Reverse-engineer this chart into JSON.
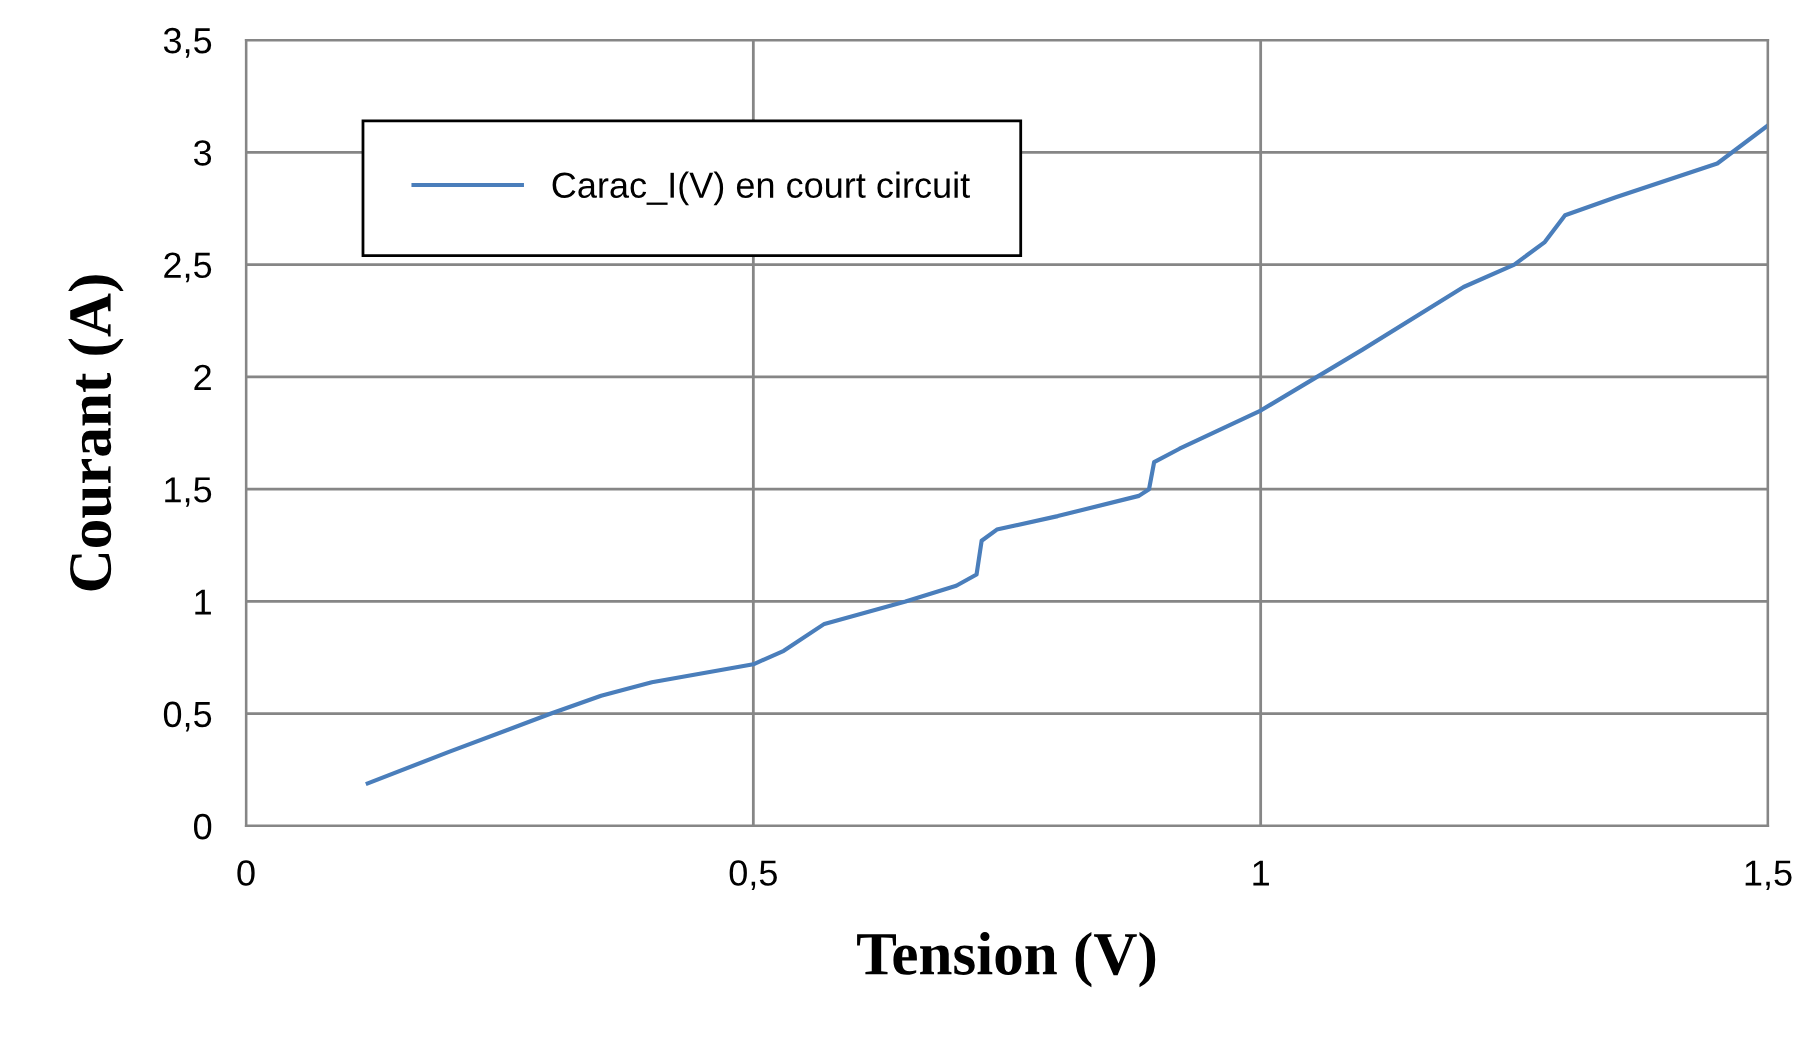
{
  "chart_data": {
    "type": "line",
    "xlabel": "Tension (V)",
    "ylabel": "Courant (A)",
    "xlim": [
      0,
      1.5
    ],
    "ylim": [
      0,
      3.5
    ],
    "xticks": [
      0,
      {
        "value": 0.5,
        "label": "0,5"
      },
      1,
      {
        "value": 1.5,
        "label": "1,5"
      }
    ],
    "yticks": [
      0,
      {
        "value": 0.5,
        "label": "0,5"
      },
      1,
      {
        "value": 1.5,
        "label": "1,5"
      },
      2,
      {
        "value": 2.5,
        "label": "2,5"
      },
      3,
      {
        "value": 3.5,
        "label": "3,5"
      }
    ],
    "grid": true,
    "legend": "top left",
    "marker": "none",
    "line_style": "solid",
    "series": [
      {
        "name": "Carac_I(V) en court circuit",
        "color": "#4a7ebb",
        "x": [
          0.12,
          0.2,
          0.3,
          0.35,
          0.4,
          0.5,
          0.53,
          0.57,
          0.65,
          0.7,
          0.72,
          0.725,
          0.74,
          0.8,
          0.88,
          0.89,
          0.895,
          0.92,
          1.0,
          1.1,
          1.2,
          1.25,
          1.28,
          1.3,
          1.35,
          1.45,
          1.5
        ],
        "values": [
          0.19,
          0.33,
          0.5,
          0.58,
          0.64,
          0.72,
          0.78,
          0.9,
          1.0,
          1.07,
          1.12,
          1.27,
          1.32,
          1.38,
          1.47,
          1.5,
          1.62,
          1.68,
          1.85,
          2.12,
          2.4,
          2.5,
          2.6,
          2.72,
          2.8,
          2.95,
          3.12
        ]
      }
    ]
  }
}
